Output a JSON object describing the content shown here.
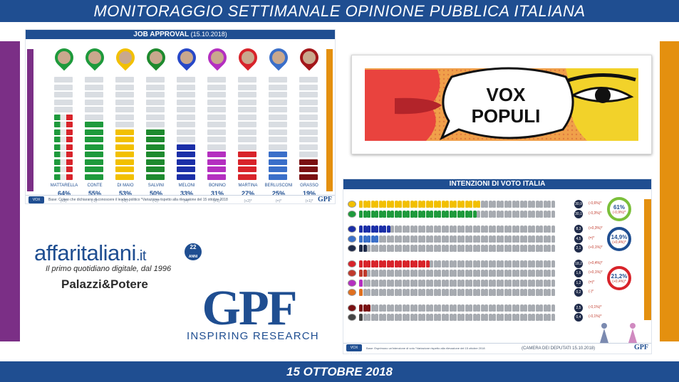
{
  "header": {
    "title": "MONITORAGGIO SETTIMANALE OPINIONE PUBBLICA ITALIANA"
  },
  "footer": {
    "date": "15 OTTOBRE 2018"
  },
  "job_approval": {
    "title": "JOB APPROVAL",
    "date": "(15.10.2018)",
    "politicians": [
      {
        "name": "MATTARELLA",
        "pct": "64%",
        "value": 64,
        "delta": "(+2)*",
        "colors": [
          "#1e9a3c",
          "#e8e8e8",
          "#d8232a"
        ],
        "pin": "#1e9a3c"
      },
      {
        "name": "CONTE",
        "pct": "55%",
        "value": 55,
        "delta": "(-1)*",
        "colors": [
          "#1e9a3c"
        ],
        "pin": "#1e9a3c"
      },
      {
        "name": "DI MAIO",
        "pct": "53%",
        "value": 53,
        "delta": "(-2)*",
        "colors": [
          "#f2c000"
        ],
        "pin": "#f2c000"
      },
      {
        "name": "SALVINI",
        "pct": "50%",
        "value": 50,
        "delta": "(-2)*",
        "colors": [
          "#1e8a2e"
        ],
        "pin": "#1e8a2e"
      },
      {
        "name": "MELONI",
        "pct": "33%",
        "value": 33,
        "delta": "(=)*",
        "colors": [
          "#1b2fa8"
        ],
        "pin": "#2748c8"
      },
      {
        "name": "BONINO",
        "pct": "31%",
        "value": 31,
        "delta": "(+1)*",
        "colors": [
          "#b42fc0"
        ],
        "pin": "#b42fc0"
      },
      {
        "name": "MARTINA",
        "pct": "27%",
        "value": 27,
        "delta": "(+2)*",
        "colors": [
          "#d8232a"
        ],
        "pin": "#d8232a"
      },
      {
        "name": "BERLUSCONI",
        "pct": "25%",
        "value": 25,
        "delta": "(=)*",
        "colors": [
          "#3a6fc9"
        ],
        "pin": "#3a6fc9"
      },
      {
        "name": "GRASSO",
        "pct": "19%",
        "value": 19,
        "delta": "(+1)*",
        "colors": [
          "#7a1012"
        ],
        "pin": "#a3161a"
      }
    ],
    "note": "Base: Coloro che dichiarano di conoscere il leader politico   *Variazione rispetto alla rilevazione del 15 ottobre 2018",
    "vox_badge": "VOX POPULI",
    "gpf_badge": "GPF"
  },
  "vox_populi": {
    "line1": "VOX",
    "line2": "POPULI"
  },
  "voting_intentions": {
    "title": "INTENZIONI DI VOTO ITALIA",
    "groups": [
      {
        "total": "61%",
        "delta": "(-0,9%)*",
        "rows": [
          {
            "value": "30,9",
            "units": 31,
            "color": "#f2c000",
            "delta": "(-0,6%)*"
          },
          {
            "value": "30,1",
            "units": 30,
            "color": "#1e9a3c",
            "delta": "(-0,3%)*"
          }
        ]
      },
      {
        "total": "14,9%",
        "delta": "(+0,4%)*",
        "rows": [
          {
            "value": "8,3",
            "units": 8,
            "color": "#1b2fa8",
            "delta": "(+0,3%)*"
          },
          {
            "value": "4,5",
            "units": 5,
            "color": "#3a6fc9",
            "delta": "(=)*"
          },
          {
            "value": "2,1",
            "units": 2,
            "color": "#1f2b4a",
            "delta": "(+0,1%)*"
          }
        ]
      },
      {
        "total": "21,2%",
        "delta": "(+0,4%)*",
        "rows": [
          {
            "value": "18,2",
            "units": 18,
            "color": "#d8232a",
            "delta": "(+0,4%)*"
          },
          {
            "value": "1,6",
            "units": 2,
            "color": "#c0392b",
            "delta": "(+0,1%)*"
          },
          {
            "value": "1,2",
            "units": 1,
            "color": "#b42fc0",
            "delta": "(=)*"
          },
          {
            "value": "0,2",
            "units": 1,
            "color": "#e07020",
            "delta": "(-)*"
          }
        ]
      },
      {
        "total": "",
        "delta": "",
        "rows": [
          {
            "value": "2,5",
            "units": 3,
            "color": "#7a1012",
            "delta": "(-0,1%)*"
          },
          {
            "value": "0,4",
            "units": 1,
            "color": "#444444",
            "delta": "(-0,1%)*"
          }
        ]
      }
    ],
    "note": "Base: Esprimono un'intenzione di voto  *Variazione rispetto alla rilevazione del 15 ottobre 2018",
    "camera": "(CAMERA DEI DEPUTATI 15.10.2018)",
    "vox_badge": "VOX POPULI",
    "gpf_badge": "GPF"
  },
  "logos": {
    "affari_name": "affaritaliani",
    "affari_tld": ".it",
    "affari_years": "22",
    "affari_years_label": "ANNI",
    "affari_tagline": "Il primo quotidiano digitale, dal 1996",
    "palazzi": "Palazzi&Potere",
    "gpf": "GPF",
    "gpf_tagline": "INSPIRING RESEARCH"
  },
  "colors": {
    "primary": "#1f4e91",
    "purple": "#7b2f86",
    "orange": "#e4900f"
  }
}
